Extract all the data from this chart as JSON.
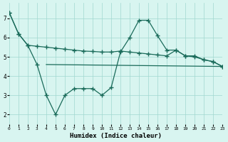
{
  "line1_x": [
    0,
    1,
    2,
    3,
    4,
    5,
    6,
    7,
    8,
    9,
    10,
    11,
    12,
    13,
    14,
    15,
    16,
    17,
    18,
    19,
    20,
    21,
    22,
    23
  ],
  "line1_y": [
    7.3,
    6.2,
    5.6,
    5.55,
    5.5,
    5.45,
    5.4,
    5.35,
    5.3,
    5.28,
    5.25,
    5.25,
    5.3,
    5.25,
    5.2,
    5.15,
    5.1,
    5.05,
    5.35,
    5.05,
    5.0,
    4.85,
    4.75,
    4.5
  ],
  "line2_x": [
    0,
    1,
    2,
    3,
    4,
    5,
    6,
    7,
    8,
    9,
    10,
    11,
    12,
    13,
    14,
    15,
    16,
    17,
    18,
    19,
    20,
    21,
    22,
    23
  ],
  "line2_y": [
    7.3,
    6.2,
    5.6,
    4.6,
    3.0,
    2.0,
    3.0,
    3.35,
    3.35,
    3.35,
    3.0,
    3.4,
    5.25,
    6.0,
    6.9,
    6.9,
    6.1,
    5.35,
    5.35,
    5.05,
    5.05,
    4.85,
    4.75,
    4.5
  ],
  "line3_x": [
    4,
    23
  ],
  "line3_y": [
    4.6,
    4.5
  ],
  "color": "#1a6b5a",
  "bg_color": "#d8f5f0",
  "grid_color": "#a0d8cf",
  "xlabel": "Humidex (Indice chaleur)",
  "ylim": [
    1.5,
    7.8
  ],
  "xlim": [
    0,
    23
  ],
  "yticks": [
    2,
    3,
    4,
    5,
    6,
    7
  ],
  "xticks": [
    0,
    1,
    2,
    3,
    4,
    5,
    6,
    7,
    8,
    9,
    10,
    11,
    12,
    13,
    14,
    15,
    16,
    17,
    18,
    19,
    20,
    21,
    22,
    23
  ]
}
